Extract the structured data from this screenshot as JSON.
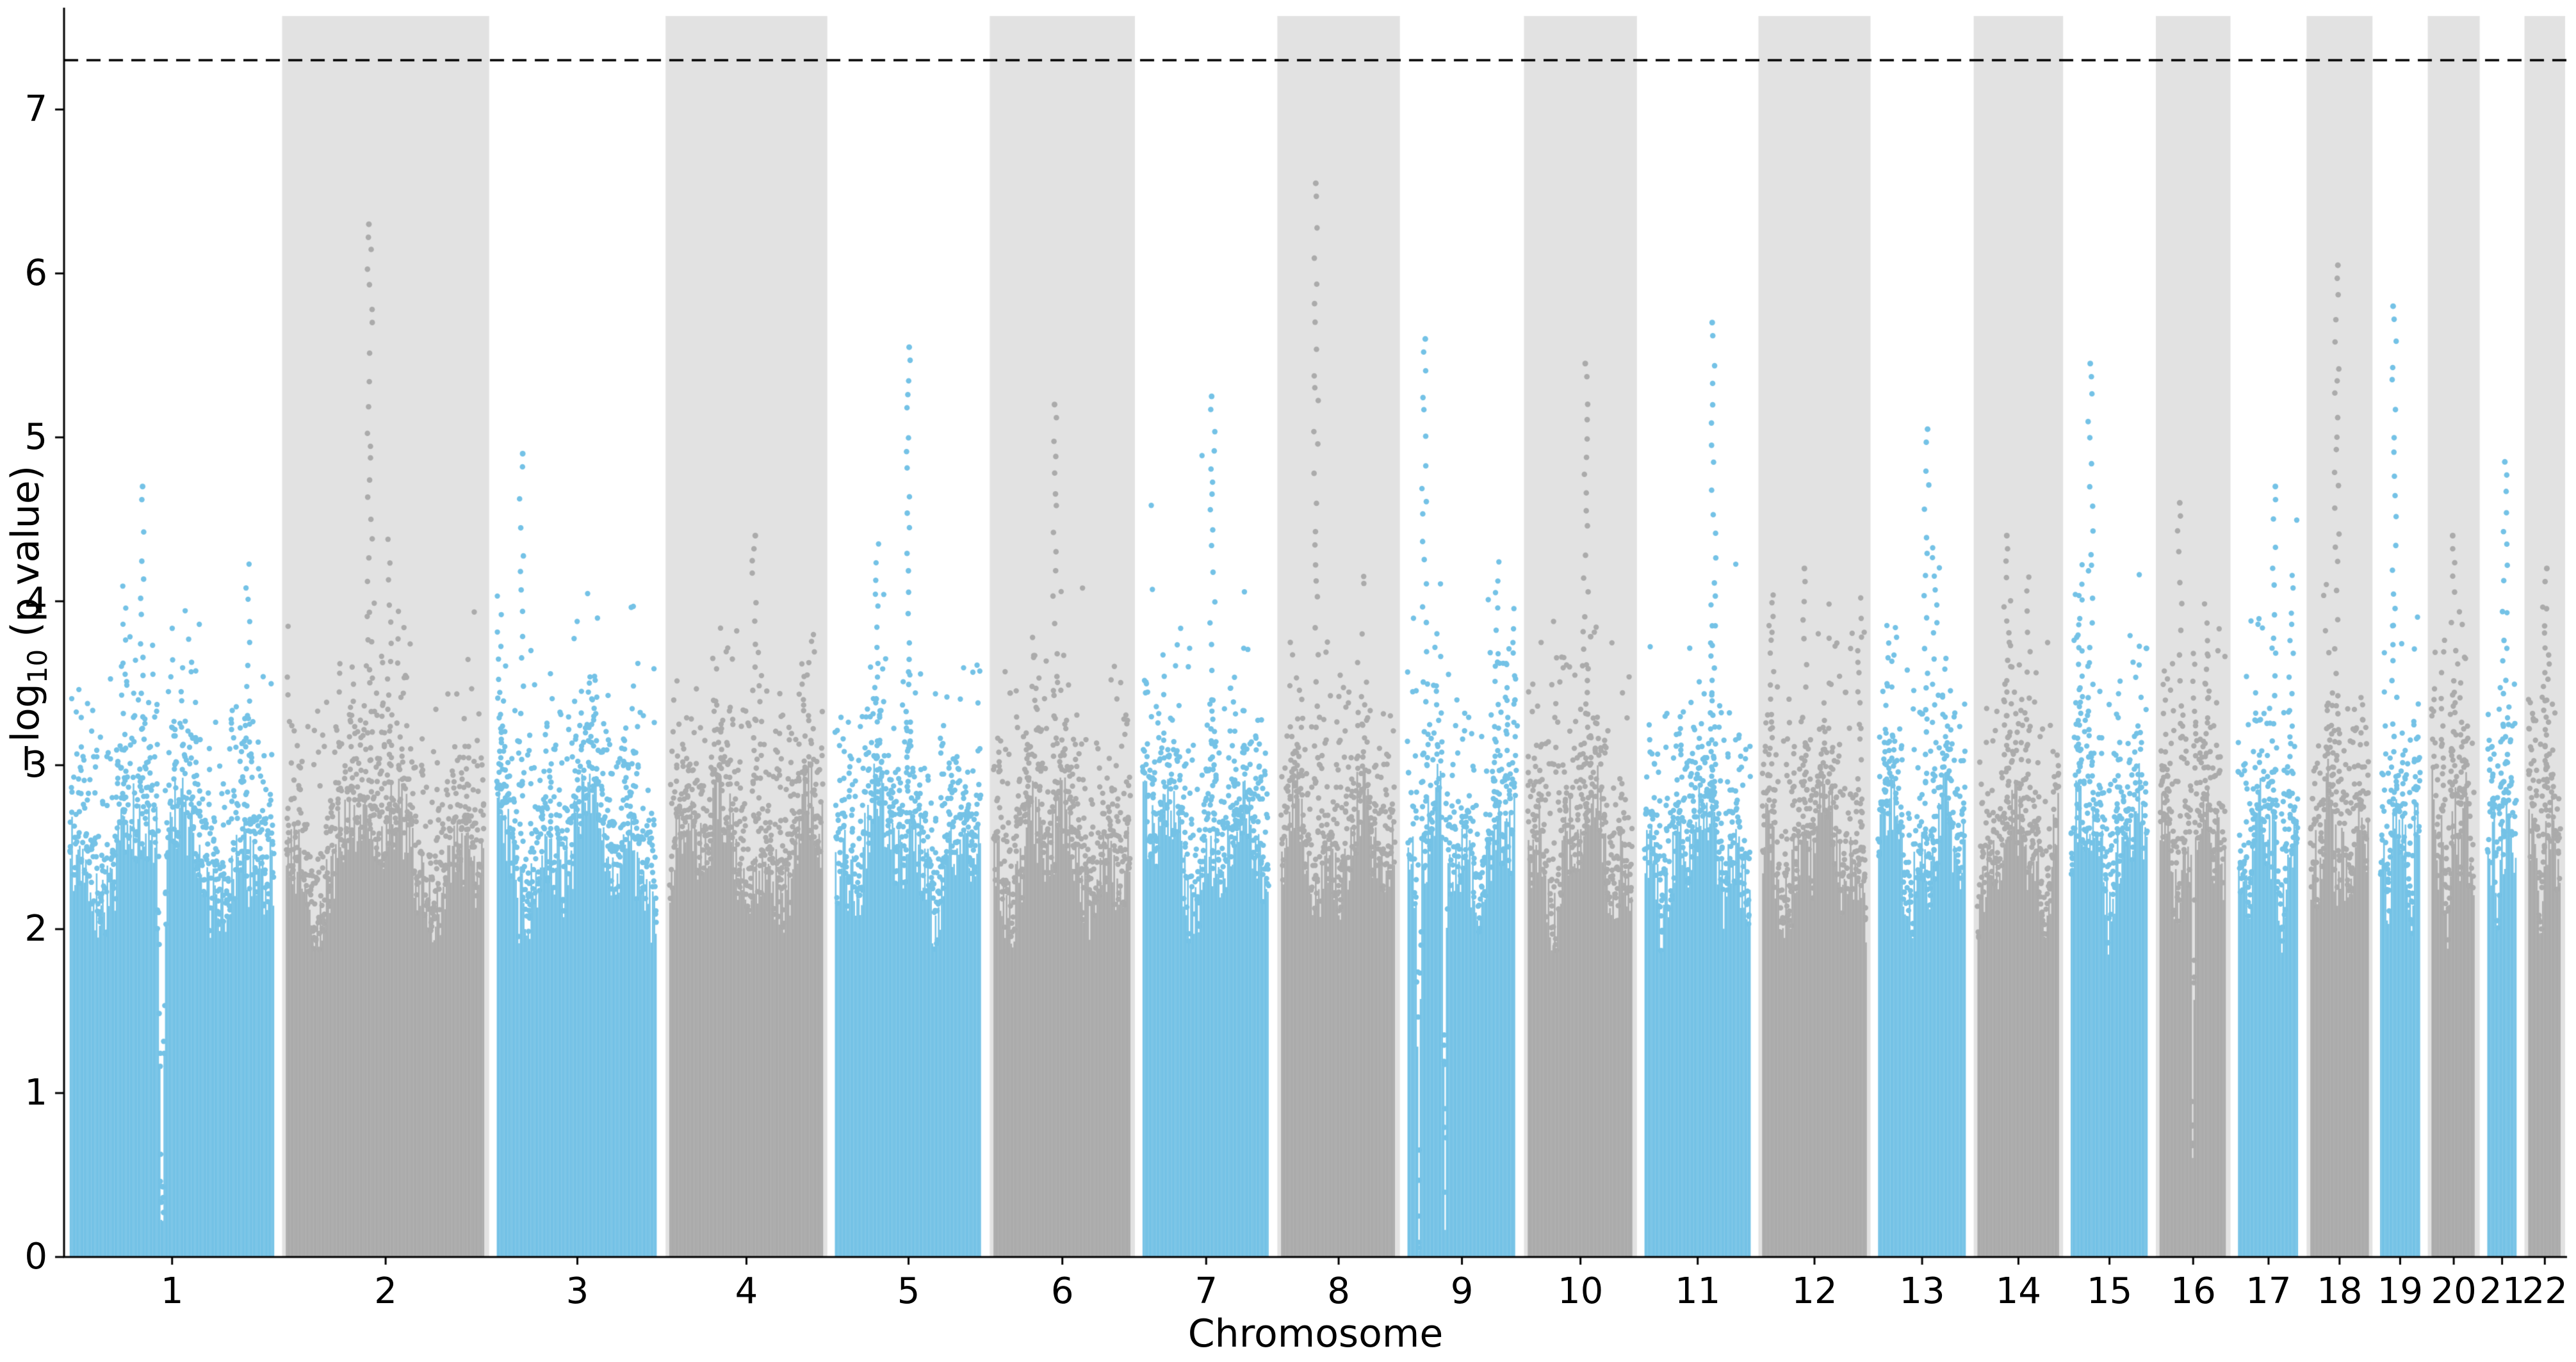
{
  "chart_data": {
    "type": "scatter",
    "subtype": "manhattan",
    "title": "",
    "xlabel": "Chromosome",
    "ylabel": "−log10 (p value)",
    "ylabel_parts": {
      "prefix": "−log",
      "sub": "10",
      "suffix": " (p value)"
    },
    "ylim": [
      0,
      7.57
    ],
    "yticks": [
      0,
      1,
      2,
      3,
      4,
      5,
      6,
      7
    ],
    "grid": false,
    "legend": null,
    "significance_threshold": 7.3,
    "significance_line_style": "dashed",
    "axis_color": "#000000",
    "band_color": "#e2e2e2",
    "point_colors": {
      "odd_chromosome": "#74c2e6",
      "even_chromosome": "#ababab"
    },
    "chromosomes": [
      {
        "label": "1",
        "size_mb": 248,
        "max_neglog10p": 4.7,
        "peak_pos": 0.35,
        "gaps": [
          0.45
        ]
      },
      {
        "label": "2",
        "size_mb": 242,
        "max_neglog10p": 6.3,
        "peak_pos": 0.42,
        "gaps": []
      },
      {
        "label": "3",
        "size_mb": 198,
        "max_neglog10p": 4.9,
        "peak_pos": 0.15,
        "gaps": []
      },
      {
        "label": "4",
        "size_mb": 190,
        "max_neglog10p": 4.4,
        "peak_pos": 0.55,
        "gaps": []
      },
      {
        "label": "5",
        "size_mb": 182,
        "max_neglog10p": 5.55,
        "peak_pos": 0.5,
        "gaps": []
      },
      {
        "label": "6",
        "size_mb": 171,
        "max_neglog10p": 5.2,
        "peak_pos": 0.45,
        "gaps": []
      },
      {
        "label": "7",
        "size_mb": 159,
        "max_neglog10p": 5.25,
        "peak_pos": 0.55,
        "gaps": []
      },
      {
        "label": "8",
        "size_mb": 145,
        "max_neglog10p": 6.55,
        "peak_pos": 0.3,
        "gaps": []
      },
      {
        "label": "9",
        "size_mb": 138,
        "max_neglog10p": 5.6,
        "peak_pos": 0.15,
        "gaps": [
          0.1,
          0.34
        ]
      },
      {
        "label": "10",
        "size_mb": 134,
        "max_neglog10p": 5.45,
        "peak_pos": 0.55,
        "gaps": []
      },
      {
        "label": "11",
        "size_mb": 135,
        "max_neglog10p": 5.7,
        "peak_pos": 0.65,
        "gaps": []
      },
      {
        "label": "12",
        "size_mb": 133,
        "max_neglog10p": 4.2,
        "peak_pos": 0.4,
        "gaps": []
      },
      {
        "label": "13",
        "size_mb": 114,
        "max_neglog10p": 5.05,
        "peak_pos": 0.55,
        "gaps": []
      },
      {
        "label": "14",
        "size_mb": 107,
        "max_neglog10p": 4.4,
        "peak_pos": 0.35,
        "gaps": []
      },
      {
        "label": "15",
        "size_mb": 102,
        "max_neglog10p": 5.45,
        "peak_pos": 0.25,
        "gaps": []
      },
      {
        "label": "16",
        "size_mb": 90,
        "max_neglog10p": 4.6,
        "peak_pos": 0.3,
        "gaps": [
          0.5
        ]
      },
      {
        "label": "17",
        "size_mb": 83,
        "max_neglog10p": 4.7,
        "peak_pos": 0.6,
        "gaps": []
      },
      {
        "label": "18",
        "size_mb": 80,
        "max_neglog10p": 6.05,
        "peak_pos": 0.45,
        "gaps": []
      },
      {
        "label": "19",
        "size_mb": 59,
        "max_neglog10p": 5.8,
        "peak_pos": 0.35,
        "gaps": []
      },
      {
        "label": "20",
        "size_mb": 64,
        "max_neglog10p": 4.4,
        "peak_pos": 0.5,
        "gaps": []
      },
      {
        "label": "21",
        "size_mb": 47,
        "max_neglog10p": 4.85,
        "peak_pos": 0.6,
        "gaps": [
          0.25
        ]
      },
      {
        "label": "22",
        "size_mb": 51,
        "max_neglog10p": 4.2,
        "peak_pos": 0.55,
        "gaps": []
      }
    ]
  }
}
